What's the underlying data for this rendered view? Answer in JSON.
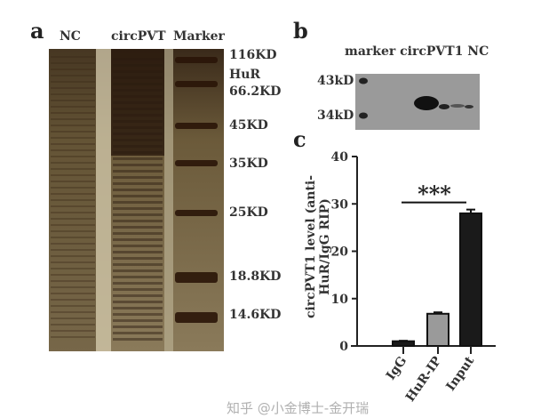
{
  "panel_a": {
    "letter": "a",
    "lanes": [
      "NC",
      "circPVT",
      "Marker"
    ],
    "marker_labels": [
      "116KD",
      "HuR",
      "66.2KD",
      "45KD",
      "35KD",
      "25KD",
      "18.8KD",
      "14.6KD"
    ]
  },
  "panel_b": {
    "letter": "b",
    "lanes_header": "marker circPVT1 NC",
    "size_labels": [
      "43kD",
      "34kD"
    ]
  },
  "panel_c": {
    "letter": "c"
  },
  "watermark": "知乎 @小金博士-金开瑞",
  "chart_data": {
    "type": "bar",
    "categories": [
      "IgG",
      "HuR-IP",
      "Input"
    ],
    "values": [
      1.0,
      6.8,
      28.0
    ],
    "errors": [
      0.1,
      0.3,
      0.8
    ],
    "colors": [
      "#1a1a1a",
      "#9a9a9a",
      "#1a1a1a"
    ],
    "ylabel": "circPVT1 level (anti-HuR/IgG RIP)",
    "ylabel_lines": [
      "circPVT1 level (anti-",
      "HuR/IgG RIP)"
    ],
    "ylim": [
      0,
      40
    ],
    "yticks": [
      0,
      10,
      20,
      30,
      40
    ],
    "annotation": "***",
    "grid": false
  }
}
